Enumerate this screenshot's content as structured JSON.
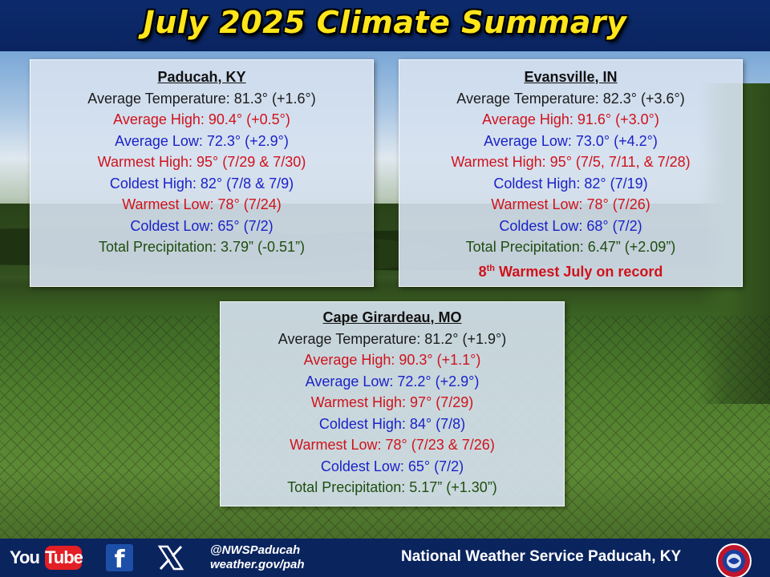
{
  "header": {
    "title": "July 2025 Climate Summary"
  },
  "panels": {
    "paducah": {
      "title": "Paducah, KY",
      "avg_temp": "Average Temperature: 81.3° (+1.6°)",
      "avg_high": "Average High: 90.4° (+0.5°)",
      "avg_low": "Average Low: 72.3° (+2.9°)",
      "warmest_high": "Warmest High: 95° (7/29 & 7/30)",
      "coldest_high": "Coldest High: 82° (7/8 & 7/9)",
      "warmest_low": "Warmest Low: 78° (7/24)",
      "coldest_low": "Coldest Low: 65° (7/2)",
      "precip": "Total Precipitation: 3.79” (-0.51”)"
    },
    "evansville": {
      "title": "Evansville, IN",
      "avg_temp": "Average Temperature: 82.3° (+3.6°)",
      "avg_high": "Average High: 91.6° (+3.0°)",
      "avg_low": "Average Low: 73.0° (+4.2°)",
      "warmest_high": "Warmest High: 95° (7/5, 7/11, & 7/28)",
      "coldest_high": "Coldest High: 82° (7/19)",
      "warmest_low": "Warmest Low: 78° (7/26)",
      "coldest_low": "Coldest Low: 68° (7/2)",
      "precip": "Total Precipitation: 6.47” (+2.09”)",
      "record_num": "8",
      "record_sup": "th",
      "record_text": " Warmest July on record"
    },
    "cape": {
      "title": "Cape Girardeau, MO",
      "avg_temp": "Average Temperature: 81.2° (+1.9°)",
      "avg_high": "Average High: 90.3° (+1.1°)",
      "avg_low": "Average Low: 72.2° (+2.9°)",
      "warmest_high": "Warmest High: 97° (7/29)",
      "coldest_high": "Coldest High: 84° (7/8)",
      "warmest_low": "Warmest Low: 78° (7/23 & 7/26)",
      "coldest_low": "Coldest Low: 65° (7/2)",
      "precip": "Total Precipitation: 5.17” (+1.30”)"
    }
  },
  "footer": {
    "youtube_you": "You",
    "youtube_tube": "Tube",
    "facebook_glyph": "f",
    "handle": "@NWSPaducah",
    "website": "weather.gov/pah",
    "office": "National Weather Service Paducah, KY",
    "icons": [
      "youtube-icon",
      "facebook-icon",
      "x-icon",
      "nws-logo-icon"
    ]
  },
  "colors": {
    "title": "#ffe51a",
    "header_bg": "#0c2a6b",
    "high": "#d0121b",
    "low": "#1a22c8",
    "precip": "#1e4d10"
  }
}
